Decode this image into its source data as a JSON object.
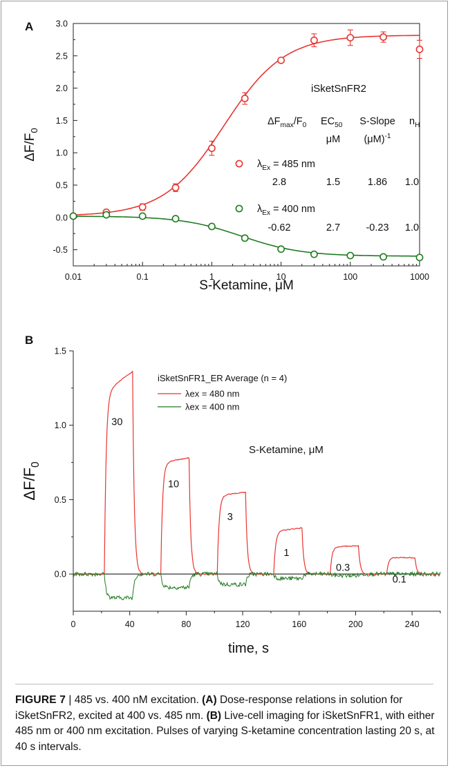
{
  "figure": {
    "label": "FIGURE 7",
    "separator": " | ",
    "caption_title": "485 vs. 400 nM excitation.",
    "caption_parts": [
      {
        "tag": "(A)",
        "text": " Dose-response relations in solution for iSketSnFR2, excited at 400 vs. 485 nm. "
      },
      {
        "tag": "(B)",
        "text": " Live-cell imaging for iSketSnFR1, with either 485 nm or 400 nm excitation. Pulses of varying S-ketamine concentration lasting 20 s, at 40 s intervals."
      }
    ]
  },
  "colors": {
    "red": "#e8332f",
    "green": "#1e7a1e",
    "axis": "#222222"
  },
  "chart_data": [
    {
      "panel": "A",
      "type": "scatter",
      "title": "iSketSnFR2",
      "xlabel": "S-Ketamine, μM",
      "ylabel": "ΔF/F0",
      "xscale": "log",
      "xlim": [
        0.01,
        1000
      ],
      "ylim": [
        -0.75,
        3.0
      ],
      "xticks": [
        "0.01",
        "0.1",
        "1",
        "10",
        "100",
        "1000"
      ],
      "yticks": [
        "-0.5",
        "0.0",
        "0.5",
        "1.0",
        "1.5",
        "2.0",
        "2.5",
        "3.0"
      ],
      "x": [
        0.01,
        0.03,
        0.1,
        0.3,
        1,
        3,
        10,
        30,
        100,
        300,
        1000
      ],
      "table_header": [
        "ΔFmax/F0",
        "EC50 μM",
        "S-Slope (μM)-1",
        "nH"
      ],
      "series": [
        {
          "name": "λEx = 485 nm",
          "color": "#e8332f",
          "values": [
            0.02,
            0.08,
            0.16,
            0.46,
            1.07,
            1.84,
            2.43,
            2.74,
            2.78,
            2.79,
            2.6
          ],
          "errors": [
            0.02,
            0.03,
            0.05,
            0.06,
            0.11,
            0.09,
            0.03,
            0.1,
            0.12,
            0.08,
            0.14
          ],
          "fit": {
            "dfmax": 2.8,
            "ec50": 1.5,
            "nH": 1.0
          },
          "params": [
            "2.8",
            "1.5",
            "1.86",
            "1.0"
          ]
        },
        {
          "name": "λEx = 400 nm",
          "color": "#1e7a1e",
          "values": [
            0.02,
            0.04,
            0.02,
            -0.02,
            -0.14,
            -0.32,
            -0.49,
            -0.57,
            -0.59,
            -0.61,
            -0.62
          ],
          "errors": [
            0.02,
            0.02,
            0.02,
            0.03,
            0.03,
            0.03,
            0.03,
            0.03,
            0.03,
            0.03,
            0.03
          ],
          "fit": {
            "dfmax": -0.62,
            "ec50": 2.7,
            "nH": 1.0
          },
          "params": [
            "-0.62",
            "2.7",
            "-0.23",
            "1.0"
          ]
        }
      ]
    },
    {
      "panel": "B",
      "type": "line",
      "title": "iSketSnFR1_ER Average (n = 4)",
      "xlabel": "time, s",
      "ylabel": "ΔF/F0",
      "xlim": [
        0,
        260
      ],
      "ylim": [
        -0.25,
        1.5
      ],
      "xticks": [
        "0",
        "40",
        "80",
        "120",
        "160",
        "200",
        "240"
      ],
      "yticks": [
        "0.0",
        "0.5",
        "1.0",
        "1.5"
      ],
      "annotation": "S-Ketamine, μM",
      "pulses": [
        {
          "label": "30",
          "start": 22,
          "end": 42,
          "red_start": 1.18,
          "red_end": 1.36,
          "green": -0.16
        },
        {
          "label": "10",
          "start": 62,
          "end": 82,
          "red_start": 0.74,
          "red_end": 0.78,
          "green": -0.09
        },
        {
          "label": "3",
          "start": 102,
          "end": 122,
          "red_start": 0.52,
          "red_end": 0.55,
          "green": -0.07
        },
        {
          "label": "1",
          "start": 142,
          "end": 162,
          "red_start": 0.28,
          "red_end": 0.31,
          "green": -0.03
        },
        {
          "label": "0.3",
          "start": 182,
          "end": 202,
          "red_start": 0.18,
          "red_end": 0.19,
          "green": -0.01
        },
        {
          "label": "0.1",
          "start": 222,
          "end": 242,
          "red_start": 0.11,
          "red_end": 0.11,
          "green": 0.0
        }
      ],
      "series": [
        {
          "name": "λex = 480 nm",
          "color": "#e8332f"
        },
        {
          "name": "λex = 400 nm",
          "color": "#1e7a1e"
        }
      ]
    }
  ]
}
